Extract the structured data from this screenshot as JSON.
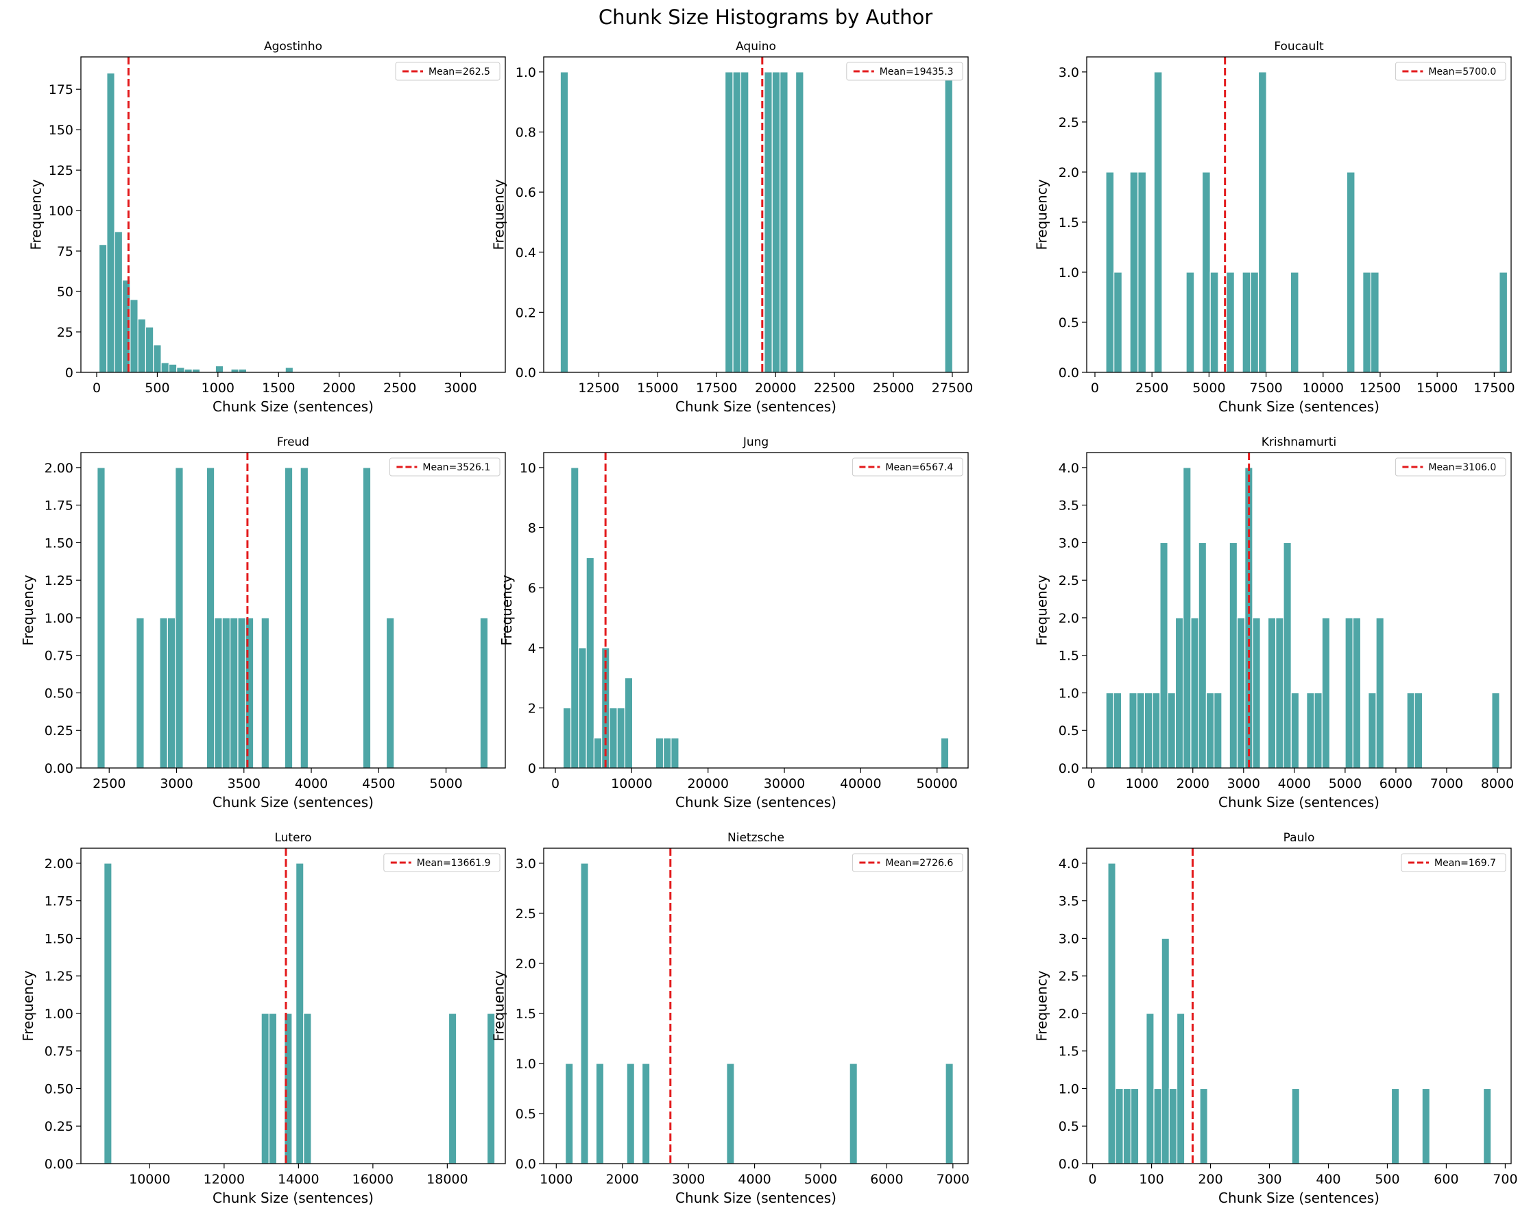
{
  "figure_title": "Chunk Size Histograms by Author",
  "colors": {
    "bar": "#4ea6a6",
    "bar_edge": "#ffffff",
    "mean_line": "#e31a1c"
  },
  "chart_data": [
    {
      "type": "bar",
      "title": "Agostinho",
      "xlabel": "Chunk Size (sentences)",
      "ylabel": "Frequency",
      "xlim": [
        -130,
        3370
      ],
      "ylim": [
        0,
        195
      ],
      "xticks": [
        0,
        500,
        1000,
        1500,
        2000,
        2500,
        3000
      ],
      "yticks": [
        0,
        25,
        50,
        75,
        100,
        125,
        150,
        175
      ],
      "ytick_labels": [
        "0",
        "25",
        "50",
        "75",
        "100",
        "125",
        "150",
        "175"
      ],
      "bin_width": 64,
      "bins": [
        [
          20,
          79
        ],
        [
          84,
          185
        ],
        [
          148,
          87
        ],
        [
          212,
          57
        ],
        [
          276,
          45
        ],
        [
          340,
          33
        ],
        [
          404,
          28
        ],
        [
          468,
          17
        ],
        [
          532,
          6
        ],
        [
          596,
          5
        ],
        [
          660,
          3
        ],
        [
          724,
          2
        ],
        [
          788,
          2
        ],
        [
          852,
          0
        ],
        [
          916,
          0
        ],
        [
          980,
          4
        ],
        [
          1044,
          0
        ],
        [
          1108,
          2
        ],
        [
          1172,
          2
        ],
        [
          1236,
          0
        ],
        [
          1556,
          3
        ]
      ],
      "mean": 262.5,
      "legend": "Mean=262.5"
    },
    {
      "type": "bar",
      "title": "Aquino",
      "xlabel": "Chunk Size (sentences)",
      "ylabel": "Frequency",
      "xlim": [
        10160,
        28170
      ],
      "ylim": [
        0,
        1.05
      ],
      "xticks": [
        12500,
        15000,
        17500,
        20000,
        22500,
        25000,
        27500
      ],
      "yticks": [
        0,
        0.2,
        0.4,
        0.6,
        0.8,
        1.0
      ],
      "ytick_labels": [
        "0.0",
        "0.2",
        "0.4",
        "0.6",
        "0.8",
        "1.0"
      ],
      "bin_width": 333,
      "bins": [
        [
          10866,
          1
        ],
        [
          17858,
          1
        ],
        [
          18191,
          1
        ],
        [
          18524,
          1
        ],
        [
          19523,
          1
        ],
        [
          19856,
          1
        ],
        [
          20189,
          1
        ],
        [
          20855,
          1
        ],
        [
          27181,
          1
        ]
      ],
      "mean": 19435.3,
      "legend": "Mean=19435.3"
    },
    {
      "type": "bar",
      "title": "Foucault",
      "xlabel": "Chunk Size (sentences)",
      "ylabel": "Frequency",
      "xlim": [
        -360,
        18240
      ],
      "ylim": [
        0,
        3.15
      ],
      "xticks": [
        0,
        2500,
        5000,
        7500,
        10000,
        12500,
        15000,
        17500
      ],
      "yticks": [
        0,
        0.5,
        1.0,
        1.5,
        2.0,
        2.5,
        3.0
      ],
      "ytick_labels": [
        "0.0",
        "0.5",
        "1.0",
        "1.5",
        "2.0",
        "2.5",
        "3.0"
      ],
      "bin_width": 352,
      "bins": [
        [
          480,
          2
        ],
        [
          832,
          1
        ],
        [
          1536,
          2
        ],
        [
          1888,
          2
        ],
        [
          2592,
          3
        ],
        [
          3999,
          1
        ],
        [
          4703,
          2
        ],
        [
          5055,
          1
        ],
        [
          5759,
          1
        ],
        [
          6463,
          1
        ],
        [
          6815,
          1
        ],
        [
          7167,
          3
        ],
        [
          8575,
          1
        ],
        [
          11038,
          2
        ],
        [
          11742,
          1
        ],
        [
          12094,
          1
        ],
        [
          17723,
          1
        ]
      ],
      "mean": 5700.0,
      "legend": "Mean=5700.0"
    },
    {
      "type": "bar",
      "title": "Freud",
      "xlabel": "Chunk Size (sentences)",
      "ylabel": "Frequency",
      "xlim": [
        2290,
        5440
      ],
      "ylim": [
        0,
        2.1
      ],
      "xticks": [
        2500,
        3000,
        3500,
        4000,
        4500,
        5000
      ],
      "yticks": [
        0,
        0.25,
        0.5,
        0.75,
        1.0,
        1.25,
        1.5,
        1.75,
        2.0
      ],
      "ytick_labels": [
        "0.00",
        "0.25",
        "0.50",
        "0.75",
        "1.00",
        "1.25",
        "1.50",
        "1.75",
        "2.00"
      ],
      "bin_width": 58,
      "bins": [
        [
          2411,
          2
        ],
        [
          2701,
          1
        ],
        [
          2875,
          1
        ],
        [
          2933,
          1
        ],
        [
          2991,
          2
        ],
        [
          3223,
          2
        ],
        [
          3281,
          1
        ],
        [
          3339,
          1
        ],
        [
          3397,
          1
        ],
        [
          3455,
          1
        ],
        [
          3513,
          1
        ],
        [
          3629,
          1
        ],
        [
          3803,
          2
        ],
        [
          3919,
          2
        ],
        [
          4383,
          2
        ],
        [
          4557,
          1
        ],
        [
          5253,
          1
        ]
      ],
      "mean": 3526.1,
      "legend": "Mean=3526.1"
    },
    {
      "type": "bar",
      "title": "Jung",
      "xlabel": "Chunk Size (sentences)",
      "ylabel": "Frequency",
      "xlim": [
        -1530,
        54070
      ],
      "ylim": [
        0,
        10.5
      ],
      "xticks": [
        0,
        10000,
        20000,
        30000,
        40000,
        50000
      ],
      "yticks": [
        0,
        2,
        4,
        6,
        8,
        10
      ],
      "ytick_labels": [
        "0",
        "2",
        "4",
        "6",
        "8",
        "10"
      ],
      "bin_width": 1010,
      "bins": [
        [
          1020,
          2
        ],
        [
          2030,
          10
        ],
        [
          3040,
          4
        ],
        [
          4050,
          7
        ],
        [
          5060,
          1
        ],
        [
          6070,
          4
        ],
        [
          7080,
          2
        ],
        [
          8090,
          2
        ],
        [
          9100,
          3
        ],
        [
          13140,
          1
        ],
        [
          14150,
          1
        ],
        [
          15160,
          1
        ],
        [
          50510,
          1
        ]
      ],
      "mean": 6567.4,
      "legend": "Mean=6567.4"
    },
    {
      "type": "bar",
      "title": "Krishnamurti",
      "xlabel": "Chunk Size (sentences)",
      "ylabel": "Frequency",
      "xlim": [
        -90,
        8270
      ],
      "ylim": [
        0,
        4.2
      ],
      "xticks": [
        0,
        1000,
        2000,
        3000,
        4000,
        5000,
        6000,
        7000,
        8000
      ],
      "yticks": [
        0,
        0.5,
        1.0,
        1.5,
        2.0,
        2.5,
        3.0,
        3.5,
        4.0
      ],
      "ytick_labels": [
        "0.0",
        "0.5",
        "1.0",
        "1.5",
        "2.0",
        "2.5",
        "3.0",
        "3.5",
        "4.0"
      ],
      "bin_width": 152,
      "bins": [
        [
          290,
          1
        ],
        [
          442,
          1
        ],
        [
          746,
          1
        ],
        [
          898,
          1
        ],
        [
          1050,
          1
        ],
        [
          1202,
          1
        ],
        [
          1354,
          3
        ],
        [
          1506,
          1
        ],
        [
          1658,
          2
        ],
        [
          1810,
          4
        ],
        [
          1962,
          2
        ],
        [
          2114,
          3
        ],
        [
          2266,
          1
        ],
        [
          2418,
          1
        ],
        [
          2722,
          3
        ],
        [
          2874,
          2
        ],
        [
          3026,
          4
        ],
        [
          3178,
          2
        ],
        [
          3482,
          2
        ],
        [
          3634,
          2
        ],
        [
          3786,
          3
        ],
        [
          3938,
          1
        ],
        [
          4242,
          1
        ],
        [
          4394,
          1
        ],
        [
          4546,
          2
        ],
        [
          5002,
          2
        ],
        [
          5154,
          2
        ],
        [
          5458,
          1
        ],
        [
          5610,
          2
        ],
        [
          6218,
          1
        ],
        [
          6370,
          1
        ],
        [
          7890,
          1
        ]
      ],
      "mean": 3106.0,
      "legend": "Mean=3106.0"
    },
    {
      "type": "bar",
      "title": "Lutero",
      "xlabel": "Chunk Size (sentences)",
      "ylabel": "Frequency",
      "xlim": [
        8150,
        19560
      ],
      "ylim": [
        0,
        2.1
      ],
      "xticks": [
        10000,
        12000,
        14000,
        16000,
        18000
      ],
      "yticks": [
        0,
        0.25,
        0.5,
        0.75,
        1.0,
        1.25,
        1.5,
        1.75,
        2.0
      ],
      "ytick_labels": [
        "0.00",
        "0.25",
        "0.50",
        "0.75",
        "1.00",
        "1.25",
        "1.50",
        "1.75",
        "2.00"
      ],
      "bin_width": 207,
      "bins": [
        [
          8772,
          2
        ],
        [
          13000,
          1
        ],
        [
          13207,
          1
        ],
        [
          13620,
          1
        ],
        [
          13931,
          2
        ],
        [
          14137,
          1
        ],
        [
          18039,
          1
        ],
        [
          19072,
          1
        ]
      ],
      "mean": 13661.9,
      "legend": "Mean=13661.9"
    },
    {
      "type": "bar",
      "title": "Nietzsche",
      "xlabel": "Chunk Size (sentences)",
      "ylabel": "Frequency",
      "xlim": [
        810,
        7230
      ],
      "ylim": [
        0,
        3.15
      ],
      "xticks": [
        1000,
        2000,
        3000,
        4000,
        5000,
        6000,
        7000
      ],
      "yticks": [
        0,
        0.5,
        1.0,
        1.5,
        2.0,
        2.5,
        3.0
      ],
      "ytick_labels": [
        "0.0",
        "0.5",
        "1.0",
        "1.5",
        "2.0",
        "2.5",
        "3.0"
      ],
      "bin_width": 116,
      "bins": [
        [
          1138,
          1
        ],
        [
          1370,
          3
        ],
        [
          1602,
          1
        ],
        [
          2067,
          1
        ],
        [
          2299,
          1
        ],
        [
          3577,
          1
        ],
        [
          5437,
          1
        ],
        [
          6888,
          1
        ]
      ],
      "mean": 2726.6,
      "legend": "Mean=2726.6"
    },
    {
      "type": "bar",
      "title": "Paulo",
      "xlabel": "Chunk Size (sentences)",
      "ylabel": "Frequency",
      "xlim": [
        -10,
        710
      ],
      "ylim": [
        0,
        4.2
      ],
      "xticks": [
        0,
        100,
        200,
        300,
        400,
        500,
        600,
        700
      ],
      "yticks": [
        0,
        0.5,
        1.0,
        1.5,
        2.0,
        2.5,
        3.0,
        3.5,
        4.0
      ],
      "ytick_labels": [
        "0.0",
        "0.5",
        "1.0",
        "1.5",
        "2.0",
        "2.5",
        "3.0",
        "3.5",
        "4.0"
      ],
      "bin_width": 13,
      "bins": [
        [
          26,
          4
        ],
        [
          39,
          1
        ],
        [
          52,
          1
        ],
        [
          65,
          1
        ],
        [
          91,
          2
        ],
        [
          104,
          1
        ],
        [
          117,
          3
        ],
        [
          130,
          1
        ],
        [
          143,
          2
        ],
        [
          182,
          1
        ],
        [
          338,
          1
        ],
        [
          507,
          1
        ],
        [
          559,
          1
        ],
        [
          663,
          1
        ]
      ],
      "mean": 169.7,
      "legend": "Mean=169.7"
    }
  ]
}
